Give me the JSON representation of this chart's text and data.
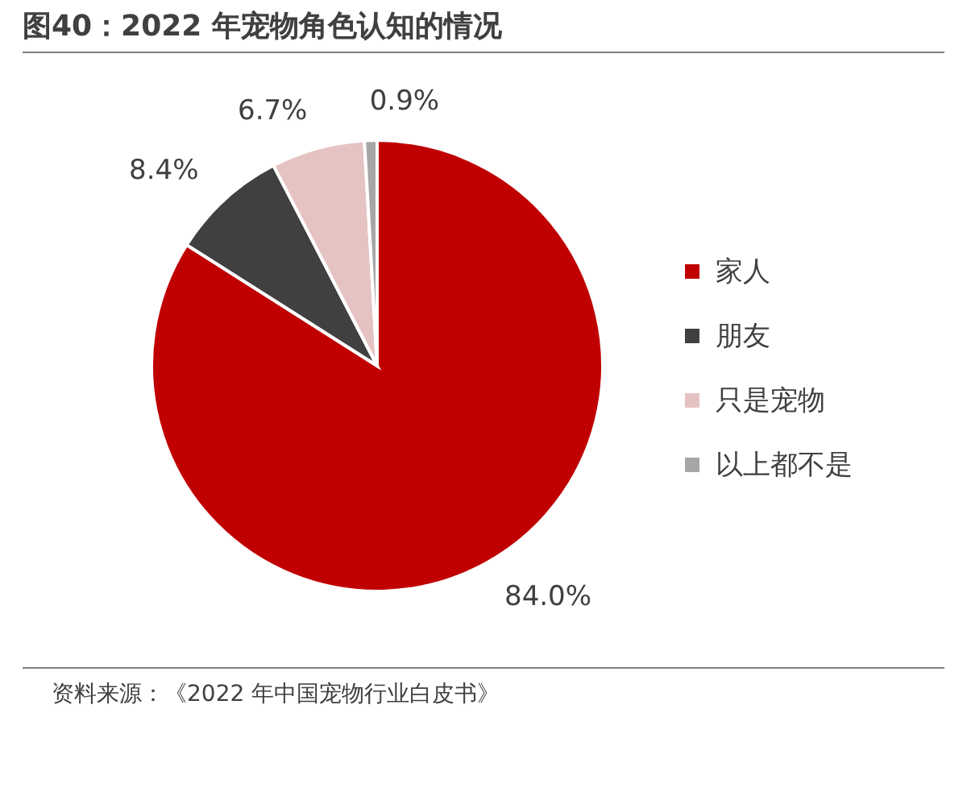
{
  "chart_data": {
    "type": "pie",
    "title": "图40：2022 年宠物角色认知的情况",
    "categories": [
      "家人",
      "朋友",
      "只是宠物",
      "以上都不是"
    ],
    "values": [
      84.0,
      8.4,
      6.7,
      0.9
    ],
    "value_labels": [
      "84.0%",
      "8.4%",
      "6.7%",
      "0.9%"
    ],
    "colors": [
      "#c00000",
      "#404040",
      "#e6c3c3",
      "#a6a6a6"
    ],
    "legend": "right",
    "annotations": [
      "资料来源：《2022 年中国宠物行业白皮书》"
    ]
  }
}
